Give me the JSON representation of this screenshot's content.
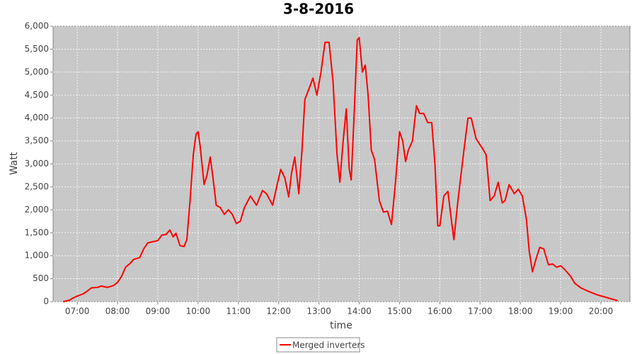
{
  "chart_data": {
    "type": "line",
    "title": "3-8-2016",
    "x_label": "time",
    "y_label": "Watt",
    "x": [
      6.65,
      6.8,
      6.9,
      7.0,
      7.15,
      7.25,
      7.35,
      7.5,
      7.6,
      7.75,
      7.9,
      8.0,
      8.1,
      8.2,
      8.3,
      8.4,
      8.55,
      8.65,
      8.75,
      8.9,
      9.0,
      9.1,
      9.2,
      9.3,
      9.38,
      9.45,
      9.55,
      9.65,
      9.72,
      9.8,
      9.88,
      9.95,
      10.0,
      10.05,
      10.15,
      10.22,
      10.3,
      10.37,
      10.45,
      10.55,
      10.65,
      10.75,
      10.85,
      10.95,
      11.05,
      11.15,
      11.3,
      11.45,
      11.6,
      11.7,
      11.85,
      11.95,
      12.05,
      12.15,
      12.25,
      12.32,
      12.4,
      12.5,
      12.58,
      12.65,
      12.78,
      12.85,
      12.95,
      13.05,
      13.15,
      13.25,
      13.35,
      13.45,
      13.52,
      13.6,
      13.68,
      13.75,
      13.8,
      13.88,
      13.95,
      14.0,
      14.08,
      14.15,
      14.22,
      14.3,
      14.38,
      14.5,
      14.6,
      14.7,
      14.8,
      14.9,
      15.0,
      15.08,
      15.15,
      15.22,
      15.32,
      15.42,
      15.5,
      15.6,
      15.7,
      15.8,
      15.88,
      15.95,
      16.0,
      16.1,
      16.2,
      16.3,
      16.35,
      16.45,
      16.6,
      16.7,
      16.78,
      16.9,
      17.05,
      17.15,
      17.25,
      17.35,
      17.45,
      17.55,
      17.62,
      17.72,
      17.85,
      17.95,
      18.05,
      18.15,
      18.22,
      18.3,
      18.38,
      18.48,
      18.58,
      18.7,
      18.8,
      18.9,
      19.0,
      19.1,
      19.25,
      19.35,
      19.5,
      19.7,
      19.9,
      20.1,
      20.3,
      20.42
    ],
    "series": [
      {
        "name": "Merged inverters",
        "color": "#ff0000",
        "values": [
          0,
          30,
          80,
          120,
          170,
          230,
          300,
          310,
          340,
          310,
          350,
          420,
          550,
          750,
          820,
          920,
          960,
          1150,
          1280,
          1310,
          1330,
          1450,
          1460,
          1560,
          1410,
          1490,
          1220,
          1200,
          1350,
          2200,
          3200,
          3650,
          3700,
          3400,
          2550,
          2750,
          3150,
          2700,
          2100,
          2050,
          1900,
          2000,
          1900,
          1700,
          1750,
          2050,
          2300,
          2100,
          2420,
          2350,
          2100,
          2500,
          2880,
          2700,
          2280,
          2800,
          3150,
          2350,
          3300,
          4400,
          4700,
          4870,
          4500,
          5000,
          5650,
          5650,
          4800,
          3200,
          2600,
          3500,
          4200,
          2900,
          2650,
          4200,
          5700,
          5750,
          5000,
          5150,
          4500,
          3300,
          3100,
          2200,
          1950,
          1970,
          1680,
          2600,
          3700,
          3500,
          3050,
          3300,
          3500,
          4270,
          4100,
          4100,
          3900,
          3900,
          3000,
          1650,
          1650,
          2300,
          2400,
          1700,
          1350,
          2200,
          3300,
          4000,
          4000,
          3550,
          3350,
          3200,
          2200,
          2300,
          2600,
          2150,
          2200,
          2550,
          2350,
          2450,
          2300,
          1800,
          1100,
          650,
          900,
          1180,
          1150,
          800,
          820,
          750,
          780,
          700,
          550,
          400,
          300,
          220,
          150,
          100,
          50,
          20
        ]
      }
    ],
    "xlim": [
      6.4,
      20.72
    ],
    "ylim": [
      0,
      6000
    ],
    "xticks": [
      {
        "value": 7,
        "label": "07:00"
      },
      {
        "value": 8,
        "label": "08:00"
      },
      {
        "value": 9,
        "label": "09:00"
      },
      {
        "value": 10,
        "label": "10:00"
      },
      {
        "value": 11,
        "label": "11:00"
      },
      {
        "value": 12,
        "label": "12:00"
      },
      {
        "value": 13,
        "label": "13:00"
      },
      {
        "value": 14,
        "label": "14:00"
      },
      {
        "value": 15,
        "label": "15:00"
      },
      {
        "value": 16,
        "label": "16:00"
      },
      {
        "value": 17,
        "label": "17:00"
      },
      {
        "value": 18,
        "label": "18:00"
      },
      {
        "value": 19,
        "label": "19:00"
      },
      {
        "value": 20,
        "label": "20:00"
      }
    ],
    "yticks": [
      0,
      500,
      {
        "value": 1000,
        "label": "1,000"
      },
      {
        "value": 1500,
        "label": "1,500"
      },
      {
        "value": 2000,
        "label": "2,000"
      },
      {
        "value": 2500,
        "label": "2,500"
      },
      {
        "value": 3000,
        "label": "3,000"
      },
      {
        "value": 3500,
        "label": "3,500"
      },
      {
        "value": 4000,
        "label": "4,000"
      },
      {
        "value": 4500,
        "label": "4,500"
      },
      {
        "value": 5000,
        "label": "5,000"
      },
      {
        "value": 5500,
        "label": "5,500"
      },
      {
        "value": 6000,
        "label": "6,000"
      }
    ],
    "grid": true
  }
}
